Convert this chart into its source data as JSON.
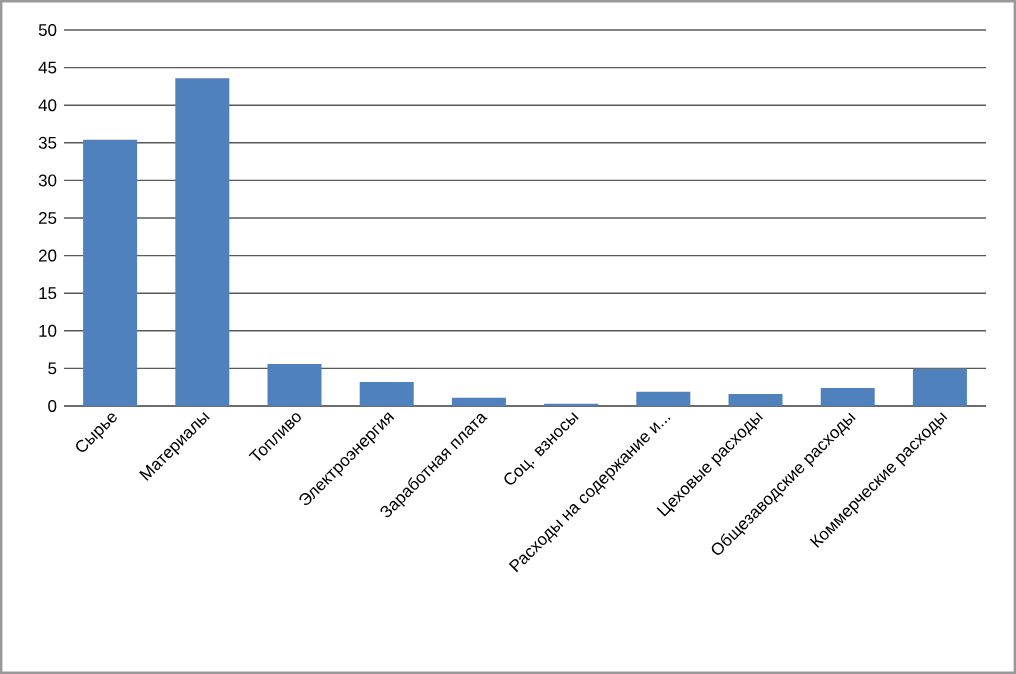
{
  "chart_data": {
    "type": "bar",
    "categories": [
      "Сырье",
      "Материалы",
      "Топливо",
      "Электроэнергия",
      "Заработная плата",
      "Соц. взносы",
      "Расходы на содержание и...",
      "Цеховые расходы",
      "Общезаводские расходы",
      "Коммерческие расходы"
    ],
    "values": [
      35.4,
      43.6,
      5.6,
      3.2,
      1.1,
      0.3,
      1.9,
      1.6,
      2.4,
      5.0
    ],
    "color": "#4f81bd",
    "ylim": [
      0,
      50
    ],
    "yticks": [
      0,
      5,
      10,
      15,
      20,
      25,
      30,
      35,
      40,
      45,
      50
    ],
    "grid": "y"
  }
}
